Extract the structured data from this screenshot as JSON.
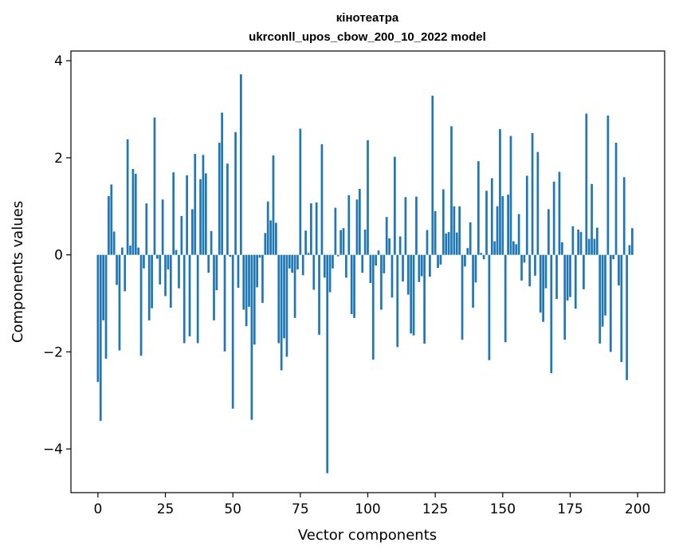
{
  "chart_data": {
    "type": "bar",
    "title": "кінотеатра\nukrconll_upos_cbow_200_10_2022 model",
    "title_lines": [
      "кінотеатра",
      "ukrconll_upos_cbow_200_10_2022 model"
    ],
    "xlabel": "Vector components",
    "ylabel": "Components values",
    "xlim": [
      -10,
      210
    ],
    "ylim": [
      -4.9,
      4.2
    ],
    "xticks": [
      0,
      25,
      50,
      75,
      100,
      125,
      150,
      175,
      200
    ],
    "xtick_labels": [
      "0",
      "25",
      "50",
      "75",
      "100",
      "125",
      "150",
      "175",
      "200"
    ],
    "yticks": [
      -4,
      -2,
      0,
      2,
      4
    ],
    "ytick_labels": [
      "−4",
      "−2",
      "0",
      "2",
      "4"
    ],
    "bar_color": "#1f77b4",
    "grid": false,
    "series": [
      {
        "values": [
          -2.62,
          -3.42,
          -1.35,
          -2.14,
          1.21,
          1.45,
          0.48,
          -0.62,
          -1.97,
          0.15,
          -0.75,
          2.38,
          0.19,
          1.77,
          1.67,
          0.15,
          -2.08,
          -0.28,
          1.06,
          -1.35,
          -1.1,
          2.83,
          -0.08,
          -0.61,
          1.14,
          -0.85,
          -0.3,
          -1.09,
          1.7,
          0.1,
          -0.69,
          0.8,
          -1.82,
          1.64,
          -1.68,
          0.94,
          2.08,
          -1.82,
          1.56,
          2.06,
          1.68,
          -0.37,
          0.49,
          -1.35,
          -0.73,
          2.31,
          2.93,
          -1.99,
          1.88,
          -0.04,
          -3.17,
          2.53,
          -0.68,
          3.72,
          -1.13,
          -1.47,
          -1.07,
          -3.4,
          -1.85,
          -0.67,
          -0.06,
          -0.99,
          0.45,
          1.1,
          0.71,
          2.05,
          0.66,
          -1.82,
          -2.38,
          -1.72,
          -2.1,
          -0.28,
          -0.37,
          -1.3,
          -0.3,
          2.6,
          -0.42,
          0.5,
          0.04,
          1.06,
          -0.72,
          1.08,
          -1.65,
          2.28,
          -0.47,
          -4.5,
          -0.77,
          -0.28,
          0.97,
          -0.03,
          0.51,
          0.55,
          -0.47,
          1.23,
          -1.22,
          -1.3,
          1.14,
          1.36,
          -0.37,
          0.52,
          2.36,
          -0.58,
          -2.16,
          -0.22,
          0.09,
          -1.13,
          -0.38,
          0.78,
          0.34,
          -0.88,
          2.02,
          -1.9,
          0.38,
          -0.55,
          1.19,
          -0.82,
          -1.62,
          -1.66,
          1.2,
          -0.56,
          -0.44,
          -1.83,
          0.51,
          -0.45,
          3.28,
          0.9,
          -0.27,
          -0.2,
          1.35,
          0.44,
          0.47,
          2.65,
          1.0,
          0.46,
          1.0,
          -1.75,
          -0.24,
          0.14,
          0.67,
          -1.09,
          -0.57,
          1.93,
          0.04,
          -0.09,
          1.32,
          -2.17,
          1.58,
          0.28,
          1.0,
          2.59,
          1.21,
          -1.8,
          1.24,
          2.45,
          0.28,
          0.22,
          0.84,
          -0.53,
          -0.16,
          1.63,
          -0.65,
          2.51,
          -0.43,
          2.12,
          -1.19,
          -1.38,
          -0.69,
          0.94,
          -2.44,
          1.51,
          -0.91,
          1.71,
          0.26,
          -1.75,
          -0.94,
          -0.87,
          0.59,
          -1.11,
          0.52,
          0.47,
          -0.71,
          2.91,
          0.33,
          1.46,
          0.33,
          0.56,
          -1.83,
          -1.48,
          -1.25,
          2.87,
          -2.0,
          -0.09,
          2.31,
          -0.63,
          -2.21,
          1.6,
          -2.58,
          0.2,
          0.55
        ]
      }
    ]
  }
}
